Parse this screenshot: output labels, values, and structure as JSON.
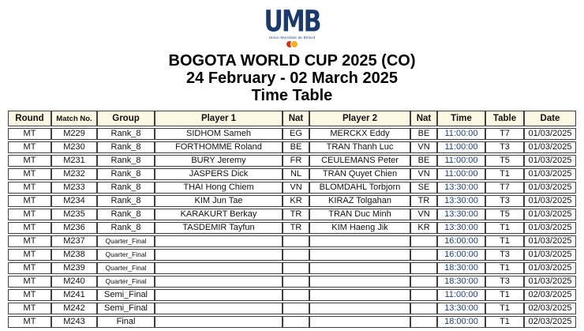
{
  "logo": {
    "text": "UMB",
    "caption": "Union Mondiale de Billard"
  },
  "title": {
    "line1": "BOGOTA WORLD CUP 2025 (CO)",
    "line2": "24 February - 02 March 2025",
    "line3": "Time Table"
  },
  "colors": {
    "header_bg": "#FDF8E4",
    "table_border": "#3F3F3F",
    "time_text": "#1F3F77",
    "logo_navy": "#1B3A6B",
    "logo_red": "#D13526",
    "logo_yellow": "#EFB122"
  },
  "table": {
    "headers": [
      "Round",
      "Match No.",
      "Group",
      "Player 1",
      "Nat",
      "Player 2",
      "Nat",
      "Time",
      "Table",
      "Date"
    ],
    "rows": [
      [
        "MT",
        "M229",
        "Rank_8",
        "SIDHOM Sameh",
        "EG",
        "MERCKX Eddy",
        "BE",
        "11:00:00",
        "T7",
        "01/03/2025"
      ],
      [
        "MT",
        "M230",
        "Rank_8",
        "FORTHOMME Roland",
        "BE",
        "TRAN Thanh Luc",
        "VN",
        "11:00:00",
        "T3",
        "01/03/2025"
      ],
      [
        "MT",
        "M231",
        "Rank_8",
        "BURY Jeremy",
        "FR",
        "CEULEMANS Peter",
        "BE",
        "11:00:00",
        "T5",
        "01/03/2025"
      ],
      [
        "MT",
        "M232",
        "Rank_8",
        "JASPERS Dick",
        "NL",
        "TRAN Quyet Chien",
        "VN",
        "11:00:00",
        "T1",
        "01/03/2025"
      ],
      [
        "MT",
        "M233",
        "Rank_8",
        "THAI Hong Chiem",
        "VN",
        "BLOMDAHL Torbjorn",
        "SE",
        "13:30:00",
        "T7",
        "01/03/2025"
      ],
      [
        "MT",
        "M234",
        "Rank_8",
        "KIM Jun Tae",
        "KR",
        "KIRAZ Tolgahan",
        "TR",
        "13:30:00",
        "T3",
        "01/03/2025"
      ],
      [
        "MT",
        "M235",
        "Rank_8",
        "KARAKURT Berkay",
        "TR",
        "TRAN Duc Minh",
        "VN",
        "13:30:00",
        "T5",
        "01/03/2025"
      ],
      [
        "MT",
        "M236",
        "Rank_8",
        "TASDEMIR Tayfun",
        "TR",
        "KIM Haeng Jik",
        "KR",
        "13:30:00",
        "T1",
        "01/03/2025"
      ],
      [
        "MT",
        "M237",
        "Quarter_Final",
        "",
        "",
        "",
        "",
        "16:00:00",
        "T1",
        "01/03/2025"
      ],
      [
        "MT",
        "M238",
        "Quarter_Final",
        "",
        "",
        "",
        "",
        "16:00:00",
        "T3",
        "01/03/2025"
      ],
      [
        "MT",
        "M239",
        "Quarter_Final",
        "",
        "",
        "",
        "",
        "18:30:00",
        "T1",
        "01/03/2025"
      ],
      [
        "MT",
        "M240",
        "Quarter_Final",
        "",
        "",
        "",
        "",
        "18:30:00",
        "T3",
        "01/03/2025"
      ],
      [
        "MT",
        "M241",
        "Semi_Final",
        "",
        "",
        "",
        "",
        "11:00:00",
        "T1",
        "02/03/2025"
      ],
      [
        "MT",
        "M242",
        "Semi_Final",
        "",
        "",
        "",
        "",
        "13:30:00",
        "T1",
        "02/03/2025"
      ],
      [
        "MT",
        "M243",
        "Final",
        "",
        "",
        "",
        "",
        "18:00:00",
        "T1",
        "02/03/2025"
      ]
    ]
  }
}
